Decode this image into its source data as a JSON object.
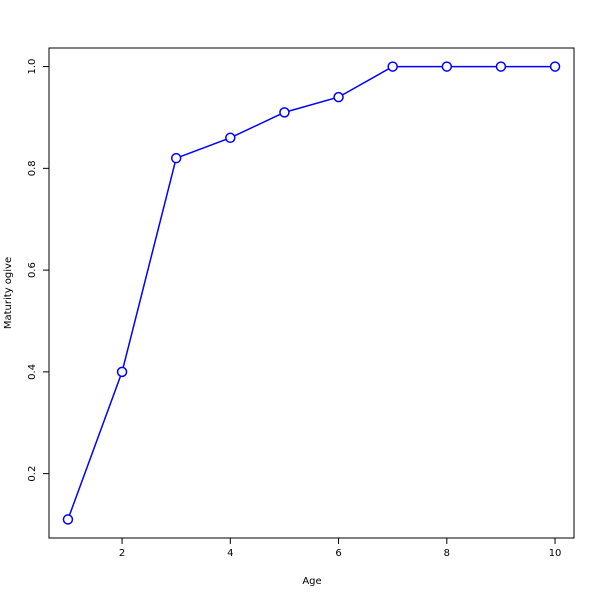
{
  "chart_data": {
    "type": "line",
    "title": "",
    "xlabel": "Age",
    "ylabel": "Maturity ogive",
    "x": [
      1,
      2,
      3,
      4,
      5,
      6,
      7,
      8,
      9,
      10
    ],
    "series": [
      {
        "values": [
          0.11,
          0.4,
          0.82,
          0.86,
          0.91,
          0.94,
          1.0,
          1.0,
          1.0,
          1.0
        ],
        "color": "#0000ff",
        "marker": "open-circle"
      }
    ],
    "xlim": [
      0.65,
      10.35
    ],
    "ylim": [
      0.0735,
      1.0365
    ],
    "xticks": [
      2,
      4,
      6,
      8,
      10
    ],
    "xtick_labels": [
      "2",
      "4",
      "6",
      "8",
      "10"
    ],
    "yticks": [
      0.2,
      0.4,
      0.6,
      0.8,
      1.0
    ],
    "ytick_labels": [
      "0.2",
      "0.4",
      "0.6",
      "0.8",
      "1.0"
    ],
    "grid": false,
    "legend": "none"
  }
}
